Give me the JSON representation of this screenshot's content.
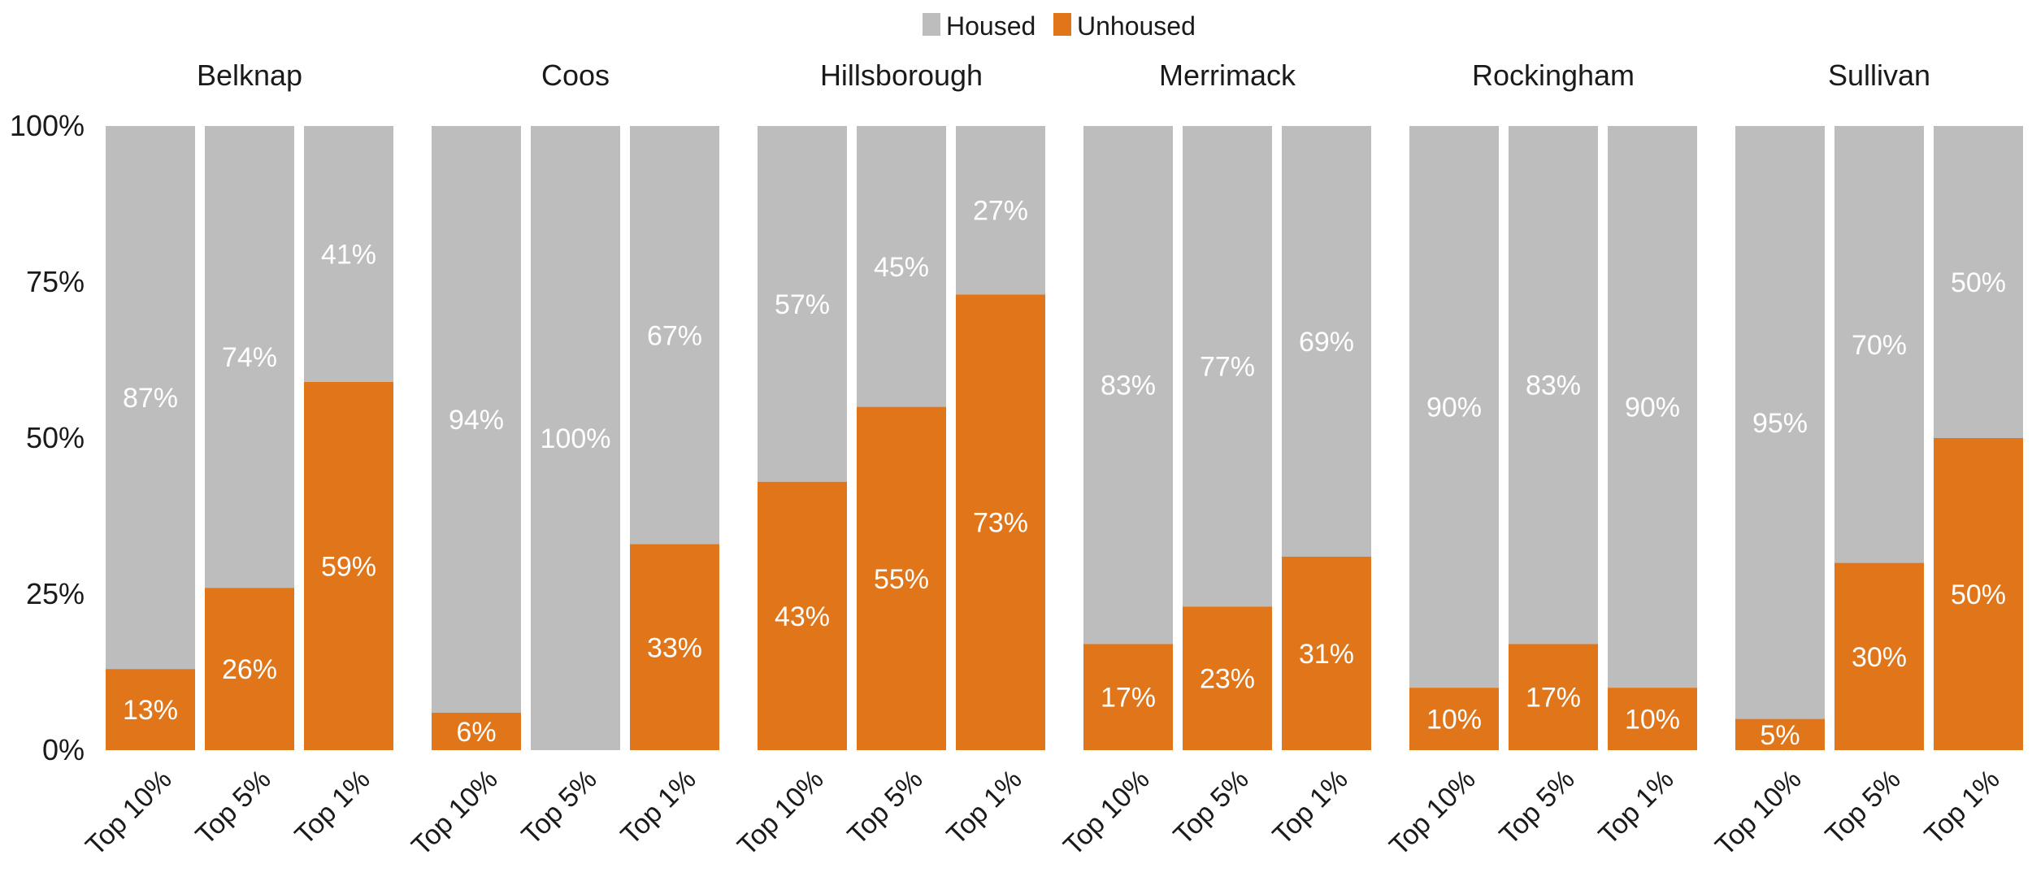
{
  "chart_data": {
    "type": "bar",
    "stacked": true,
    "percent_scale": true,
    "ylim": [
      0,
      100
    ],
    "yticks": [
      "0%",
      "25%",
      "50%",
      "75%",
      "100%"
    ],
    "ytick_values": [
      0,
      25,
      50,
      75,
      100
    ],
    "categories": [
      "Top 10%",
      "Top 5%",
      "Top 1%"
    ],
    "legend": {
      "position": "top-center",
      "items": [
        {
          "name": "Housed",
          "color": "#bdbdbd"
        },
        {
          "name": "Unhoused",
          "color": "#e07519"
        }
      ]
    },
    "grid": false,
    "facets": [
      {
        "title": "Belknap",
        "housed": [
          87,
          74,
          41
        ],
        "unhoused": [
          13,
          26,
          59
        ],
        "housed_labels": [
          "87%",
          "74%",
          "41%"
        ],
        "unhoused_labels": [
          "13%",
          "26%",
          "59%"
        ]
      },
      {
        "title": "Coos",
        "housed": [
          94,
          100,
          67
        ],
        "unhoused": [
          6,
          0,
          33
        ],
        "housed_labels": [
          "94%",
          "100%",
          "67%"
        ],
        "unhoused_labels": [
          "6%",
          "",
          "33%"
        ]
      },
      {
        "title": "Hillsborough",
        "housed": [
          57,
          45,
          27
        ],
        "unhoused": [
          43,
          55,
          73
        ],
        "housed_labels": [
          "57%",
          "45%",
          "27%"
        ],
        "unhoused_labels": [
          "43%",
          "55%",
          "73%"
        ]
      },
      {
        "title": "Merrimack",
        "housed": [
          83,
          77,
          69
        ],
        "unhoused": [
          17,
          23,
          31
        ],
        "housed_labels": [
          "83%",
          "77%",
          "69%"
        ],
        "unhoused_labels": [
          "17%",
          "23%",
          "31%"
        ]
      },
      {
        "title": "Rockingham",
        "housed": [
          90,
          83,
          90
        ],
        "unhoused": [
          10,
          17,
          10
        ],
        "housed_labels": [
          "90%",
          "83%",
          "90%"
        ],
        "unhoused_labels": [
          "10%",
          "17%",
          "10%"
        ]
      },
      {
        "title": "Sullivan",
        "housed": [
          95,
          70,
          50
        ],
        "unhoused": [
          5,
          30,
          50
        ],
        "housed_labels": [
          "95%",
          "70%",
          "50%"
        ],
        "unhoused_labels": [
          "5%",
          "30%",
          "50%"
        ]
      }
    ]
  }
}
